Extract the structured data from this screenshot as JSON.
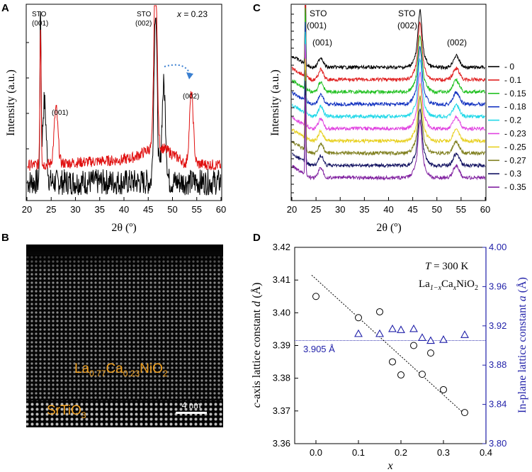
{
  "panels": {
    "A": {
      "letter": "A",
      "annotation": "x = 0.23",
      "annotation_var": "x",
      "annotation_val": " = 0.23",
      "labels": {
        "sto001": [
          "STO",
          "(001)"
        ],
        "sto002": [
          "STO",
          "(002)"
        ],
        "film001": "(001)",
        "film002": "(002)"
      },
      "ylabel": "Intensity (a.u.)",
      "xlabel": "2θ (º)",
      "xticks": [
        "20",
        "25",
        "30",
        "35",
        "40",
        "45",
        "50",
        "55",
        "60"
      ],
      "series_colors": {
        "before": "#000000",
        "after": "#e01010"
      }
    },
    "B": {
      "letter": "B",
      "film_label_main": "La",
      "film_sub1": "0.77",
      "film_mid": "Ca",
      "film_sub2": "0.23",
      "film_tail": "NiO",
      "film_sub3": "2",
      "substrate_main": "SrTiO",
      "substrate_sub": "3",
      "scale_bar": "4 nm",
      "label_color": "#f0a020"
    },
    "C": {
      "letter": "C",
      "labels": {
        "sto001": [
          "STO",
          "(001)"
        ],
        "sto002": [
          "STO",
          "(002)"
        ],
        "film001": "(001)",
        "film002": "(002)"
      },
      "ylabel": "Intensity (a.u.)",
      "xlabel": "2θ (º)",
      "xticks": [
        "20",
        "25",
        "30",
        "35",
        "40",
        "45",
        "50",
        "55",
        "60"
      ],
      "legend": [
        {
          "label": "0",
          "color": "#000000"
        },
        {
          "label": "0.1",
          "color": "#e02020"
        },
        {
          "label": "0.15",
          "color": "#20c020"
        },
        {
          "label": "0.18",
          "color": "#1030c0"
        },
        {
          "label": "0.2",
          "color": "#20d8e8"
        },
        {
          "label": "0.23",
          "color": "#e040e0"
        },
        {
          "label": "0.25",
          "color": "#e8d020"
        },
        {
          "label": "0.27",
          "color": "#808020"
        },
        {
          "label": "0.3",
          "color": "#101060"
        },
        {
          "label": "0.35",
          "color": "#8020a0"
        }
      ]
    },
    "D": {
      "letter": "D",
      "reference_label": "3.905 Å",
      "temp_text": "T = 300 K",
      "formula": {
        "main": "La",
        "sub1": "1−x",
        "mid": "Ca",
        "sub2": "x",
        "tail": "NiO",
        "sub3": "2"
      },
      "ylabel_left": "c-axis lattice constant d (Å)",
      "ylabel_right": "In-plane lattice constant a (Å)",
      "xlabel": "x"
    }
  },
  "chart_data": [
    {
      "panel": "D",
      "type": "scatter",
      "title": "",
      "xlabel": "x",
      "ylabel": "c-axis lattice constant d (Å)",
      "ylabel_right": "In-plane lattice constant a (Å)",
      "xlim": [
        -0.05,
        0.4
      ],
      "ylim": [
        3.36,
        3.42
      ],
      "ylim_right": [
        3.8,
        4.0
      ],
      "xticks": [
        "0.0",
        "0.1",
        "0.2",
        "0.3",
        "0.4"
      ],
      "yticks": [
        "3.36",
        "3.37",
        "3.38",
        "3.39",
        "3.40",
        "3.41",
        "3.42"
      ],
      "yticks_right": [
        "3.80",
        "3.84",
        "3.88",
        "3.92",
        "3.96",
        "4.00"
      ],
      "series": [
        {
          "name": "c-axis d",
          "marker": "circle",
          "axis": "left",
          "x": [
            0.0,
            0.1,
            0.15,
            0.18,
            0.2,
            0.23,
            0.25,
            0.27,
            0.3,
            0.35
          ],
          "y": [
            3.405,
            3.3985,
            3.4003,
            3.385,
            3.381,
            3.39,
            3.3812,
            3.3877,
            3.3765,
            3.3695
          ]
        },
        {
          "name": "in-plane a",
          "marker": "triangle",
          "axis": "right",
          "color": "#1f1fa8",
          "x": [
            0.1,
            0.15,
            0.18,
            0.2,
            0.23,
            0.25,
            0.27,
            0.3,
            0.35
          ],
          "y": [
            3.912,
            3.912,
            3.917,
            3.916,
            3.917,
            3.908,
            3.905,
            3.906,
            3.911
          ]
        }
      ],
      "fit_line": {
        "x": [
          -0.01,
          0.35
        ],
        "y": [
          3.4115,
          3.369
        ]
      },
      "reference_line": {
        "axis": "right",
        "value": 3.905,
        "label": "3.905 Å"
      }
    },
    {
      "panel": "A",
      "type": "line",
      "xlabel": "2θ (º)",
      "ylabel": "Intensity (a.u.)",
      "xlim": [
        20,
        60
      ],
      "series": [
        {
          "name": "as-grown (black)",
          "color": "#000000",
          "peaks": [
            {
              "x": 22.8,
              "h": 0.88
            },
            {
              "x": 23.6,
              "h": 0.43
            },
            {
              "x": 46.5,
              "h": 0.94
            },
            {
              "x": 48.2,
              "h": 0.52
            }
          ]
        },
        {
          "name": "reduced (red)",
          "color": "#e01010",
          "peaks": [
            {
              "x": 22.8,
              "h": 0.75
            },
            {
              "x": 26.0,
              "h": 0.3
            },
            {
              "x": 46.5,
              "h": 1.0
            },
            {
              "x": 53.9,
              "h": 0.38
            }
          ]
        }
      ]
    },
    {
      "panel": "C",
      "type": "line",
      "xlabel": "2θ (º)",
      "ylabel": "Intensity (a.u.)",
      "xlim": [
        20,
        60
      ],
      "categories": [
        "0",
        "0.1",
        "0.15",
        "0.18",
        "0.2",
        "0.23",
        "0.25",
        "0.27",
        "0.3",
        "0.35"
      ],
      "peaks_2theta": [
        22.8,
        26.0,
        46.5,
        54.0
      ]
    }
  ]
}
